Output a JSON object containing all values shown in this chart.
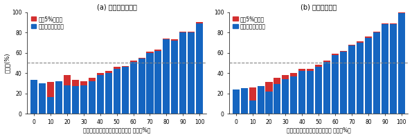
{
  "title_a": "(a) 被引用数ベース",
  "title_b": "(b) 新規性ベース",
  "xlabel_a": "被引用数ベースの生産性相対順位 （上位%）",
  "xlabel_b": "新規性ベースの生産性相対順位 （上位%）",
  "ylabel": "シェア(%)",
  "legend_red": "上位5%へ遷移",
  "legend_blue": "現顺位以上へ遷移",
  "x_ticks": [
    0,
    10,
    20,
    30,
    40,
    50,
    60,
    70,
    80,
    90,
    100
  ],
  "categories": [
    0,
    5,
    10,
    15,
    20,
    25,
    30,
    35,
    40,
    45,
    50,
    55,
    60,
    65,
    70,
    75,
    80,
    85,
    90,
    95,
    100
  ],
  "blue_a": [
    33,
    30,
    16,
    32,
    28,
    27,
    28,
    32,
    38,
    40,
    44,
    46,
    51,
    54,
    60,
    62,
    73,
    72,
    80,
    80,
    89
  ],
  "red_a": [
    0,
    0,
    15,
    0,
    10,
    6,
    4,
    3,
    2,
    2,
    2,
    1,
    1,
    1,
    1,
    1,
    1,
    1,
    1,
    1,
    1
  ],
  "blue_b": [
    24,
    25,
    13,
    27,
    22,
    29,
    34,
    37,
    42,
    42,
    46,
    51,
    58,
    61,
    67,
    70,
    75,
    80,
    88,
    88,
    99
  ],
  "red_b": [
    0,
    0,
    13,
    0,
    9,
    6,
    4,
    3,
    2,
    2,
    2,
    1,
    1,
    1,
    1,
    1,
    1,
    1,
    1,
    1,
    1
  ],
  "bar_color_blue": "#1565c0",
  "bar_color_red": "#d32f2f",
  "dashed_line_y": 50,
  "ylim": [
    0,
    100
  ],
  "background_color": "#ffffff"
}
